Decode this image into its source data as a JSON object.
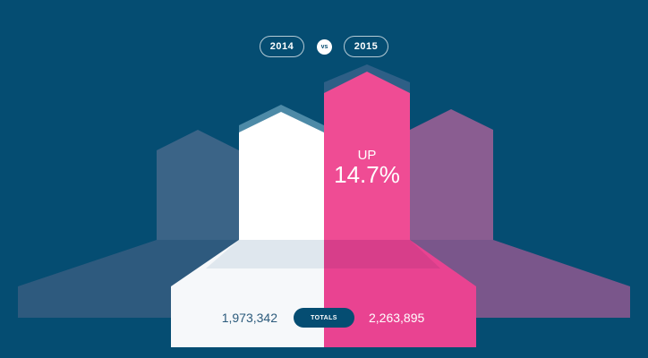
{
  "header": {
    "year_a": "2014",
    "vs": "vs",
    "year_b": "2015"
  },
  "change": {
    "label": "UP",
    "value": "14.7%"
  },
  "totals": {
    "label": "TOTALS",
    "value_2014": "1,973,342",
    "value_2015": "2,263,895"
  },
  "colors": {
    "background": "#054d72",
    "bar_2014": "#ffffff",
    "bar_2015": "#ef4c94",
    "bar_prev": "#3b6487",
    "bar_next": "#8a5d91"
  },
  "chart_data": {
    "type": "bar",
    "categories": [
      "2014",
      "2015"
    ],
    "values": [
      1973342,
      2263895
    ],
    "title": "",
    "xlabel": "",
    "ylabel": "",
    "annotation": "UP 14.7%"
  }
}
